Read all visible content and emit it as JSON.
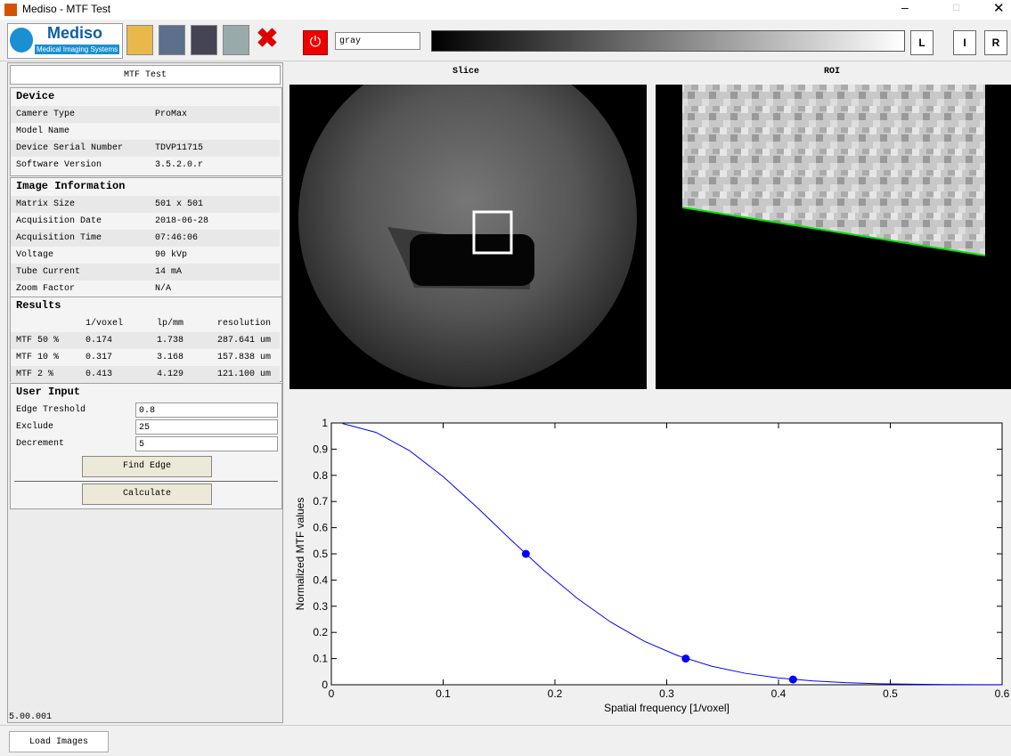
{
  "window": {
    "title": "Mediso - MTF Test"
  },
  "toolbar": {
    "logo": "Mediso",
    "logo_sub": "Medical Imaging Systems",
    "colormap": "gray",
    "buttons": [
      "L",
      "I",
      "R"
    ]
  },
  "panel": {
    "title": "MTF Test",
    "device": {
      "heading": "Device",
      "rows": [
        {
          "label": "Camere Type",
          "value": "ProMax"
        },
        {
          "label": "Model Name"
        },
        {
          "label": "Device Serial Number",
          "value": "TDVP11715"
        },
        {
          "label": "Software Version",
          "value": "3.5.2.0.r"
        }
      ]
    },
    "image_info": {
      "heading": "Image Information",
      "rows": [
        {
          "label": "Matrix Size",
          "value": "501 x 501"
        },
        {
          "label": "Acquisition Date",
          "value": "2018-06-28"
        },
        {
          "label": "Acquisition Time",
          "value": "07:46:06"
        },
        {
          "label": "Voltage",
          "value": "90 kVp"
        },
        {
          "label": "Tube Current",
          "value": "14 mA"
        },
        {
          "label": "Zoom Factor",
          "value": "N/A"
        }
      ]
    },
    "results": {
      "heading": "Results",
      "columns": [
        "1/voxel",
        "lp/mm",
        "resolution"
      ],
      "rows": [
        [
          "MTF 50 %",
          "0.174",
          "1.738",
          "287.641 um"
        ],
        [
          "MTF 10 %",
          "0.317",
          "3.168",
          "157.838 um"
        ],
        [
          "MTF 2 %",
          "0.413",
          "4.129",
          "121.100 um"
        ]
      ]
    },
    "user_input": {
      "heading": "User Input",
      "rows": [
        {
          "label": "Edge Treshold",
          "value": "0.8"
        },
        {
          "label": "Exclude",
          "value": "25"
        },
        {
          "label": "Decrement",
          "value": "5"
        }
      ],
      "buttons": [
        "Find Edge",
        "Calculate"
      ]
    }
  },
  "images": {
    "slice_title": "Slice",
    "roi_title": "ROI"
  },
  "version": "5.00.001",
  "tabs": [
    "Load Images"
  ],
  "chart_data": {
    "type": "line",
    "xlabel": "Spatial frequency [1/voxel]",
    "ylabel": "Normalized MTF values",
    "xlim": [
      0,
      0.6
    ],
    "ylim": [
      0,
      1
    ],
    "xticks": [
      0,
      0.1,
      0.2,
      0.3,
      0.4,
      0.5,
      0.6
    ],
    "yticks": [
      0,
      0.1,
      0.2,
      0.3,
      0.4,
      0.5,
      0.6,
      0.7,
      0.8,
      0.9,
      1
    ],
    "grid": false,
    "series": [
      {
        "color": "#0000ff",
        "x": [
          0.01,
          0.04,
          0.07,
          0.1,
          0.13,
          0.16,
          0.19,
          0.22,
          0.25,
          0.28,
          0.31,
          0.34,
          0.37,
          0.4,
          0.43,
          0.46,
          0.49,
          0.52,
          0.55,
          0.58,
          0.6
        ],
        "values": [
          0.998,
          0.964,
          0.894,
          0.795,
          0.679,
          0.556,
          0.437,
          0.33,
          0.239,
          0.166,
          0.111,
          0.071,
          0.044,
          0.026,
          0.015,
          0.008,
          0.004,
          0.002,
          0.001,
          0.0005,
          0.0003
        ]
      },
      {
        "color": "#0000ff",
        "marker": "circle",
        "x": [
          0.174,
          0.317,
          0.413
        ],
        "values": [
          0.5,
          0.1,
          0.02
        ]
      }
    ]
  }
}
